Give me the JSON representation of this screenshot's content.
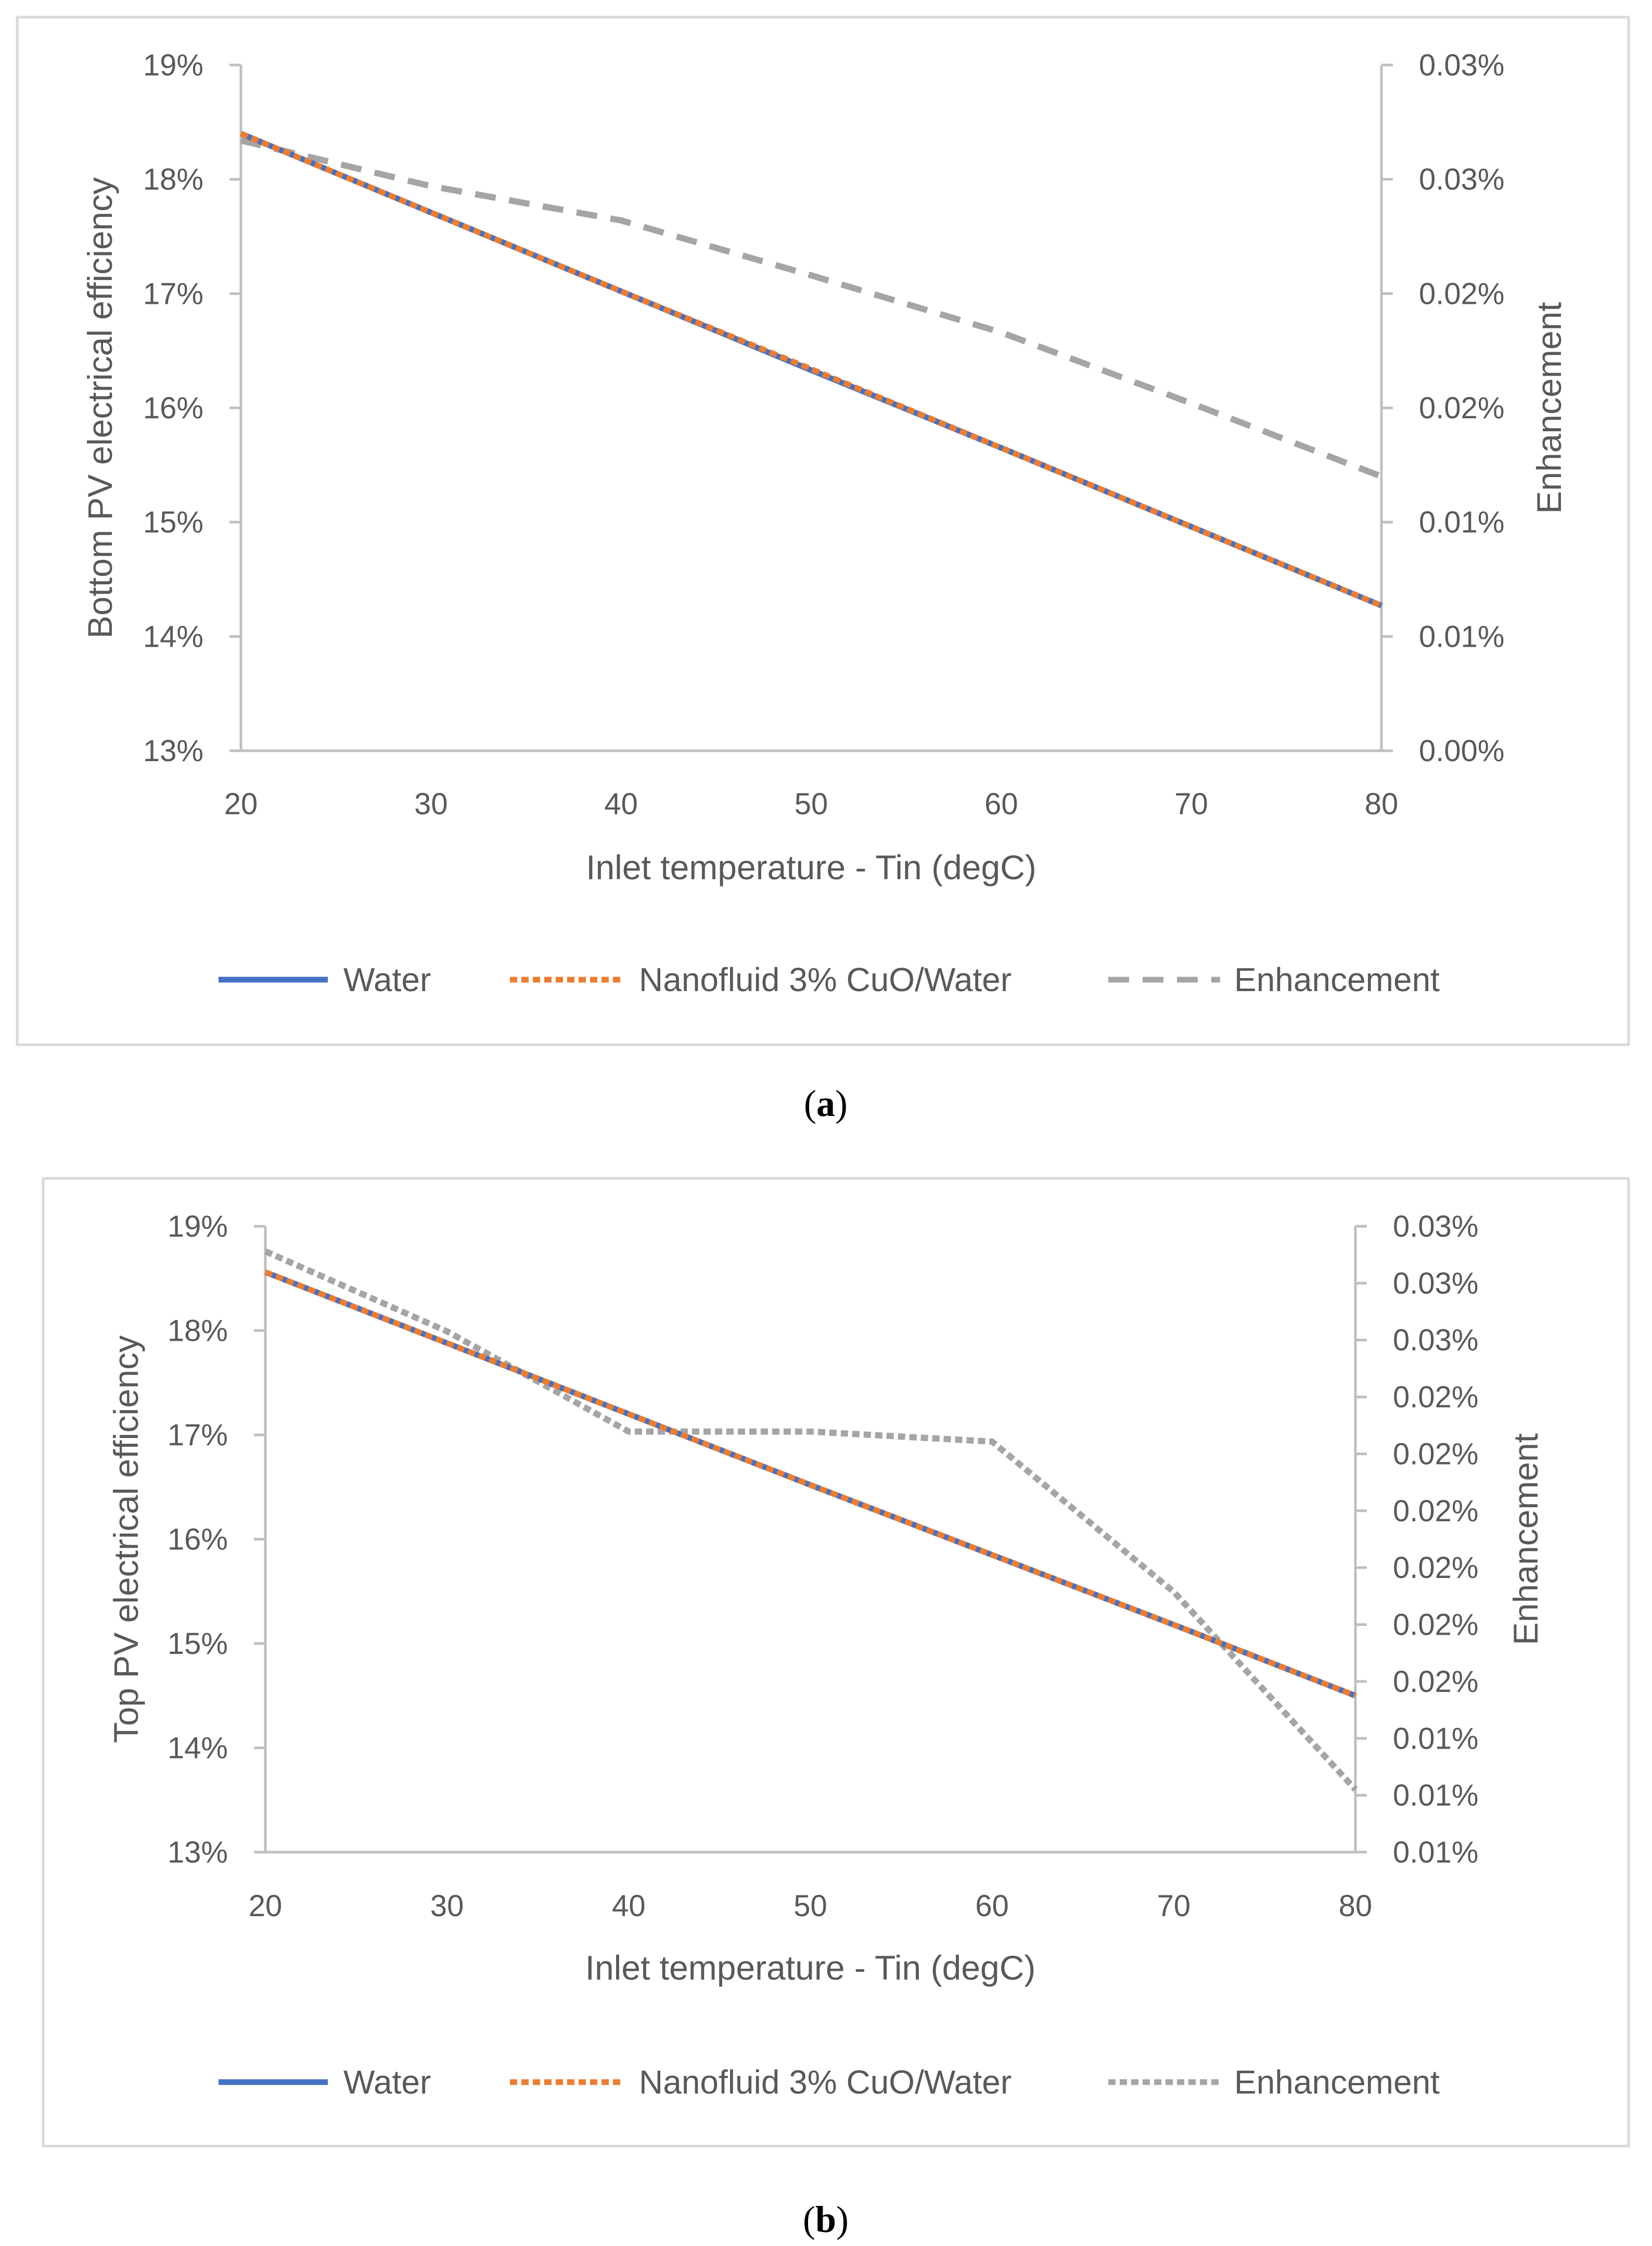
{
  "colors": {
    "water": "#4472C4",
    "nanofluid": "#ED7D31",
    "enhancement": "#A5A5A5",
    "axis": "#BFBFBF",
    "frame": "#D9D9D9",
    "text": "#595959"
  },
  "chart_data": [
    {
      "type": "line",
      "panel": "a",
      "caption": {
        "open": "(",
        "letter": "a",
        "close": ")"
      },
      "xlabel": "Inlet temperature - Tin (degC)",
      "ylabel": "Bottom  PV electrical efficiency",
      "y2label": "Enhancement",
      "xlim": [
        20,
        80
      ],
      "ylim": [
        0.13,
        0.19
      ],
      "y2lim": [
        0,
        0.0003
      ],
      "x_ticks": [
        "20",
        "30",
        "40",
        "50",
        "60",
        "70",
        "80"
      ],
      "y_ticks": [
        "13%",
        "14%",
        "15%",
        "16%",
        "17%",
        "18%",
        "19%"
      ],
      "y2_ticks": [
        "0.00%",
        "0.01%",
        "0.01%",
        "0.02%",
        "0.02%",
        "0.03%",
        "0.03%"
      ],
      "legend_position": "bottom",
      "x": [
        20,
        30,
        40,
        50,
        60,
        70,
        80
      ],
      "series": [
        {
          "name": "Water",
          "axis": "left",
          "color": "#4472C4",
          "dash": "solid",
          "values": [
            0.184,
            0.1771,
            0.1702,
            0.1633,
            0.1565,
            0.1496,
            0.1427
          ]
        },
        {
          "name": "Nanofluid 3% CuO/Water",
          "axis": "left",
          "color": "#ED7D31",
          "dash": "dotted",
          "values": [
            0.184,
            0.1771,
            0.1702,
            0.1634,
            0.1565,
            0.1496,
            0.1427
          ]
        },
        {
          "name": "Enhancement",
          "axis": "right",
          "color": "#A5A5A5",
          "dash": "dashed",
          "values": [
            0.000267,
            0.000247,
            0.000232,
            0.000208,
            0.000183,
            0.000152,
            0.00012
          ]
        }
      ]
    },
    {
      "type": "line",
      "panel": "b",
      "caption": {
        "open": "(",
        "letter": "b",
        "close": ")"
      },
      "xlabel": "Inlet temperature - Tin (degC)",
      "ylabel": "Top PV electrical efficiency",
      "y2label": "Enhancement",
      "xlim": [
        20,
        80
      ],
      "ylim": [
        0.13,
        0.19
      ],
      "y2lim": [
        5e-05,
        0.0003
      ],
      "x_ticks": [
        "20",
        "30",
        "40",
        "50",
        "60",
        "70",
        "80"
      ],
      "y_ticks": [
        "13%",
        "14%",
        "15%",
        "16%",
        "17%",
        "18%",
        "19%"
      ],
      "y2_ticks": [
        "0.01%",
        "0.01%",
        "0.01%",
        "0.02%",
        "0.02%",
        "0.02%",
        "0.02%",
        "0.02%",
        "0.02%",
        "0.03%",
        "0.03%",
        "0.03%"
      ],
      "legend_position": "bottom",
      "x": [
        20,
        30,
        40,
        50,
        60,
        70,
        80
      ],
      "series": [
        {
          "name": "Water",
          "axis": "left",
          "color": "#4472C4",
          "dash": "solid",
          "values": [
            0.1856,
            0.1788,
            0.172,
            0.1652,
            0.1585,
            0.1518,
            0.145
          ]
        },
        {
          "name": "Nanofluid 3% CuO/Water",
          "axis": "left",
          "color": "#ED7D31",
          "dash": "dotted",
          "values": [
            0.1856,
            0.1788,
            0.172,
            0.1652,
            0.1585,
            0.1518,
            0.145
          ]
        },
        {
          "name": "Enhancement",
          "axis": "right",
          "color": "#A5A5A5",
          "dash": "dotted",
          "values": [
            0.00029,
            0.000258,
            0.000218,
            0.000218,
            0.000214,
            0.000154,
            7.5e-05
          ]
        }
      ]
    }
  ]
}
